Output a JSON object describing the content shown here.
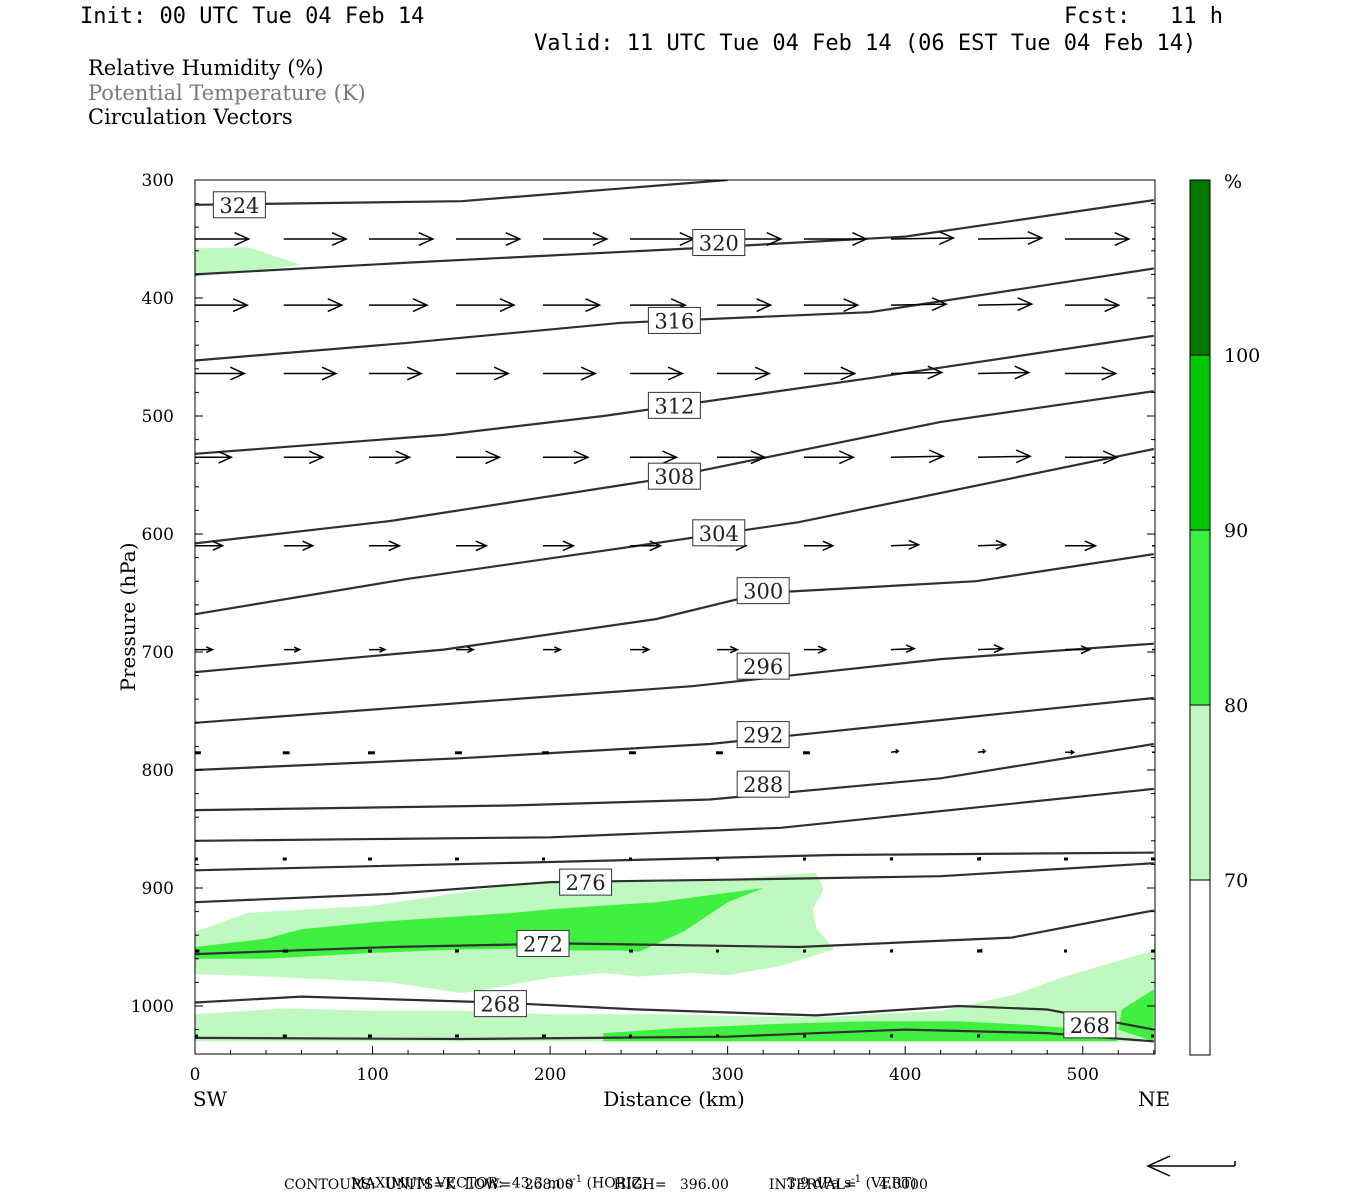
{
  "header": {
    "init": "Init: 00 UTC Tue 04 Feb 14",
    "fcst_label": "Fcst:",
    "fcst_value": "11 h",
    "valid": "Valid: 11 UTC Tue 04 Feb 14 (06 EST Tue 04 Feb 14)"
  },
  "fields": [
    {
      "label": "Relative Humidity (%)",
      "color": "#000000"
    },
    {
      "label": "Potential Temperature (K)",
      "color": "#7a7a7a"
    },
    {
      "label": "Circulation Vectors",
      "color": "#000000"
    }
  ],
  "colors": {
    "rh_70": "#c0f9c0",
    "rh_80": "#40f040",
    "rh_90": "#00c800",
    "rh_100": "#007800",
    "contour": "#303030"
  },
  "chart_data": {
    "type": "cross-section",
    "xlabel": "Distance (km)",
    "ylabel": "Pressure (hPa)",
    "xlim": [
      0,
      540
    ],
    "ylim": [
      1030,
      300
    ],
    "x_ticks": [
      "0",
      "100",
      "200",
      "300",
      "400",
      "500"
    ],
    "y_ticks": [
      "300",
      "400",
      "500",
      "600",
      "700",
      "800",
      "900",
      "1000"
    ],
    "x_end_labels": {
      "left": "SW",
      "right": "NE"
    },
    "colorbar": {
      "unit": "%",
      "levels": [
        "70",
        "80",
        "90",
        "100"
      ]
    },
    "theta_contours": [
      {
        "value": 324,
        "label": "324",
        "label_at": [
          25,
          321
        ],
        "points": [
          [
            0,
            321
          ],
          [
            150,
            318
          ],
          [
            300,
            300
          ]
        ]
      },
      {
        "value": 320,
        "label": "320",
        "label_at": [
          295,
          353
        ],
        "points": [
          [
            0,
            380
          ],
          [
            120,
            370
          ],
          [
            280,
            358
          ],
          [
            400,
            348
          ],
          [
            540,
            317
          ]
        ]
      },
      {
        "value": 316,
        "label": "316",
        "label_at": [
          270,
          419
        ],
        "points": [
          [
            0,
            453
          ],
          [
            120,
            438
          ],
          [
            240,
            421
          ],
          [
            380,
            412
          ],
          [
            540,
            375
          ]
        ]
      },
      {
        "value": 312,
        "label": "312",
        "label_at": [
          270,
          491
        ],
        "points": [
          [
            0,
            532
          ],
          [
            140,
            516
          ],
          [
            230,
            500
          ],
          [
            380,
            468
          ],
          [
            540,
            432
          ]
        ]
      },
      {
        "value": 308,
        "label": "308",
        "label_at": [
          270,
          551
        ],
        "points": [
          [
            0,
            608
          ],
          [
            110,
            589
          ],
          [
            260,
            554
          ],
          [
            420,
            505
          ],
          [
            540,
            479
          ]
        ]
      },
      {
        "value": 304,
        "label": "304",
        "label_at": [
          295,
          599
        ],
        "points": [
          [
            0,
            668
          ],
          [
            120,
            638
          ],
          [
            240,
            612
          ],
          [
            340,
            590
          ],
          [
            540,
            528
          ]
        ]
      },
      {
        "value": 300,
        "label": "300",
        "label_at": [
          320,
          648
        ],
        "points": [
          [
            0,
            717
          ],
          [
            140,
            698
          ],
          [
            260,
            672
          ],
          [
            320,
            650
          ],
          [
            440,
            640
          ],
          [
            540,
            617
          ]
        ]
      },
      {
        "value": 296,
        "label": "296",
        "label_at": [
          320,
          712
        ],
        "points": [
          [
            0,
            760
          ],
          [
            160,
            742
          ],
          [
            280,
            729
          ],
          [
            420,
            706
          ],
          [
            540,
            693
          ]
        ]
      },
      {
        "value": 292,
        "label": "292",
        "label_at": [
          320,
          770
        ],
        "points": [
          [
            0,
            800
          ],
          [
            150,
            790
          ],
          [
            290,
            778
          ],
          [
            430,
            756
          ],
          [
            540,
            739
          ]
        ]
      },
      {
        "value": 288,
        "label": "288",
        "label_at": [
          320,
          812
        ],
        "points": [
          [
            0,
            834
          ],
          [
            180,
            830
          ],
          [
            290,
            825
          ],
          [
            420,
            807
          ],
          [
            540,
            778
          ]
        ]
      },
      {
        "value": 284,
        "label": "",
        "label_at": null,
        "points": [
          [
            0,
            860
          ],
          [
            200,
            857
          ],
          [
            330,
            849
          ],
          [
            540,
            816
          ]
        ]
      },
      {
        "value": 280,
        "label": "",
        "label_at": null,
        "points": [
          [
            0,
            885
          ],
          [
            200,
            878
          ],
          [
            360,
            872
          ],
          [
            540,
            870
          ]
        ]
      },
      {
        "value": 276,
        "label": "276",
        "label_at": [
          220,
          895
        ],
        "points": [
          [
            0,
            912
          ],
          [
            110,
            905
          ],
          [
            200,
            895
          ],
          [
            300,
            893
          ],
          [
            420,
            890
          ],
          [
            540,
            879
          ]
        ]
      },
      {
        "value": 272,
        "label": "272",
        "label_at": [
          196,
          947
        ],
        "points": [
          [
            0,
            956
          ],
          [
            110,
            950
          ],
          [
            210,
            947
          ],
          [
            340,
            950
          ],
          [
            460,
            942
          ],
          [
            540,
            919
          ]
        ]
      },
      {
        "value": 268,
        "label": "268",
        "label_at": [
          172,
          998
        ],
        "points": [
          [
            0,
            997
          ],
          [
            60,
            992
          ],
          [
            170,
            997
          ],
          [
            250,
            1003
          ],
          [
            350,
            1008
          ],
          [
            430,
            1000
          ],
          [
            480,
            1003
          ],
          [
            540,
            1020
          ]
        ]
      },
      {
        "value": 268,
        "label": "268",
        "label_at": [
          504,
          1016
        ],
        "points": [
          [
            0,
            1027
          ],
          [
            150,
            1028
          ],
          [
            300,
            1026
          ],
          [
            400,
            1020
          ],
          [
            480,
            1023
          ],
          [
            540,
            1030
          ]
        ]
      }
    ],
    "rh_regions": [
      {
        "level": "70",
        "points": [
          [
            0,
            358
          ],
          [
            30,
            357
          ],
          [
            60,
            372
          ],
          [
            0,
            382
          ]
        ]
      },
      {
        "level": "70",
        "points": [
          [
            0,
            937
          ],
          [
            30,
            921
          ],
          [
            100,
            915
          ],
          [
            180,
            897
          ],
          [
            240,
            893
          ],
          [
            260,
            895
          ],
          [
            300,
            893
          ],
          [
            320,
            890
          ],
          [
            350,
            887
          ],
          [
            354,
            901
          ],
          [
            348,
            918
          ],
          [
            350,
            934
          ],
          [
            360,
            952
          ],
          [
            330,
            966
          ],
          [
            300,
            974
          ],
          [
            280,
            972
          ],
          [
            250,
            975
          ],
          [
            230,
            972
          ],
          [
            200,
            976
          ],
          [
            160,
            987
          ],
          [
            150,
            989
          ],
          [
            110,
            980
          ],
          [
            40,
            975
          ],
          [
            0,
            973
          ]
        ]
      },
      {
        "level": "70",
        "points": [
          [
            0,
            1007
          ],
          [
            50,
            1002
          ],
          [
            100,
            1004
          ],
          [
            150,
            1004
          ],
          [
            200,
            1007
          ],
          [
            260,
            1007
          ],
          [
            320,
            1009
          ],
          [
            360,
            1009
          ],
          [
            420,
            1004
          ],
          [
            460,
            991
          ],
          [
            490,
            975
          ],
          [
            540,
            953
          ],
          [
            540,
            1030
          ],
          [
            0,
            1030
          ]
        ]
      },
      {
        "level": "80",
        "points": [
          [
            0,
            950
          ],
          [
            40,
            943
          ],
          [
            60,
            935
          ],
          [
            100,
            929
          ],
          [
            150,
            924
          ],
          [
            180,
            921
          ],
          [
            200,
            918
          ],
          [
            260,
            912
          ],
          [
            320,
            900
          ],
          [
            300,
            912
          ],
          [
            275,
            937
          ],
          [
            250,
            954
          ],
          [
            240,
            953
          ],
          [
            210,
            953
          ],
          [
            200,
            951
          ],
          [
            150,
            952
          ],
          [
            100,
            955
          ],
          [
            40,
            960
          ],
          [
            0,
            960
          ]
        ]
      },
      {
        "level": "80",
        "points": [
          [
            230,
            1023
          ],
          [
            270,
            1019
          ],
          [
            330,
            1015
          ],
          [
            380,
            1013
          ],
          [
            430,
            1013
          ],
          [
            470,
            1016
          ],
          [
            510,
            1021
          ],
          [
            520,
            1030
          ],
          [
            230,
            1030
          ]
        ]
      },
      {
        "level": "80",
        "points": [
          [
            520,
            1020
          ],
          [
            522,
            1003
          ],
          [
            540,
            986
          ],
          [
            540,
            1030
          ]
        ]
      }
    ],
    "vector_rows": [
      {
        "pressure": 350,
        "dx": [
          37,
          43,
          44,
          44,
          44,
          44,
          44,
          43,
          43,
          44,
          44,
          44
        ]
      },
      {
        "pressure": 406,
        "dx": [
          36,
          40,
          40,
          40,
          39,
          38,
          37,
          37,
          38,
          37,
          37,
          36
        ]
      },
      {
        "pressure": 464,
        "dx": [
          34,
          36,
          36,
          36,
          36,
          36,
          36,
          35,
          35,
          35,
          35,
          35
        ]
      },
      {
        "pressure": 535,
        "dx": [
          25,
          27,
          28,
          30,
          31,
          32,
          33,
          34,
          36,
          36,
          36,
          35
        ]
      },
      {
        "pressure": 610,
        "dx": [
          19,
          20,
          21,
          21,
          21,
          21,
          20,
          20,
          19,
          19,
          21,
          20
        ]
      },
      {
        "pressure": 698,
        "dx": [
          12,
          11,
          11,
          12,
          12,
          13,
          14,
          15,
          16,
          17,
          17,
          16
        ]
      },
      {
        "pressure": 785,
        "dx": [
          4,
          4,
          4,
          4,
          4,
          4,
          4,
          4,
          5,
          5,
          6,
          7
        ]
      },
      {
        "pressure": 875,
        "dx": [
          2,
          2,
          2,
          2,
          1,
          0,
          0,
          0,
          1,
          2,
          2,
          2
        ]
      },
      {
        "pressure": 953,
        "dx": [
          3,
          3,
          2,
          2,
          2,
          2,
          0,
          0,
          0,
          3,
          0,
          2
        ]
      },
      {
        "pressure": 1025,
        "dx": [
          2,
          2,
          2,
          2,
          2,
          1,
          0,
          0,
          0,
          0,
          0,
          0
        ]
      }
    ],
    "vector_x_km": [
      0,
      50,
      98,
      147,
      196,
      245,
      294,
      343,
      392,
      441,
      490,
      539
    ],
    "vector_dy": [
      0,
      0,
      0,
      0,
      0,
      0,
      0,
      0,
      -1,
      -1,
      0,
      0
    ]
  },
  "footer": {
    "max_vector_label": "MAXIMUM VECTOR:",
    "max_vector_horiz_value": "43.3",
    "max_vector_horiz_unit": "m s",
    "max_vector_horiz_exp": "-1",
    "max_vector_horiz_tag": "(HORIZ)",
    "max_vector_vert_value": "3.9",
    "max_vector_vert_unit": "dPa s",
    "max_vector_vert_exp": "-1",
    "max_vector_vert_tag": "(VERT)",
    "contours": "CONTOURS:  UNITS=K  LOW=   268.00         HIGH=   396.00         INTERVAL=     4.0000"
  }
}
